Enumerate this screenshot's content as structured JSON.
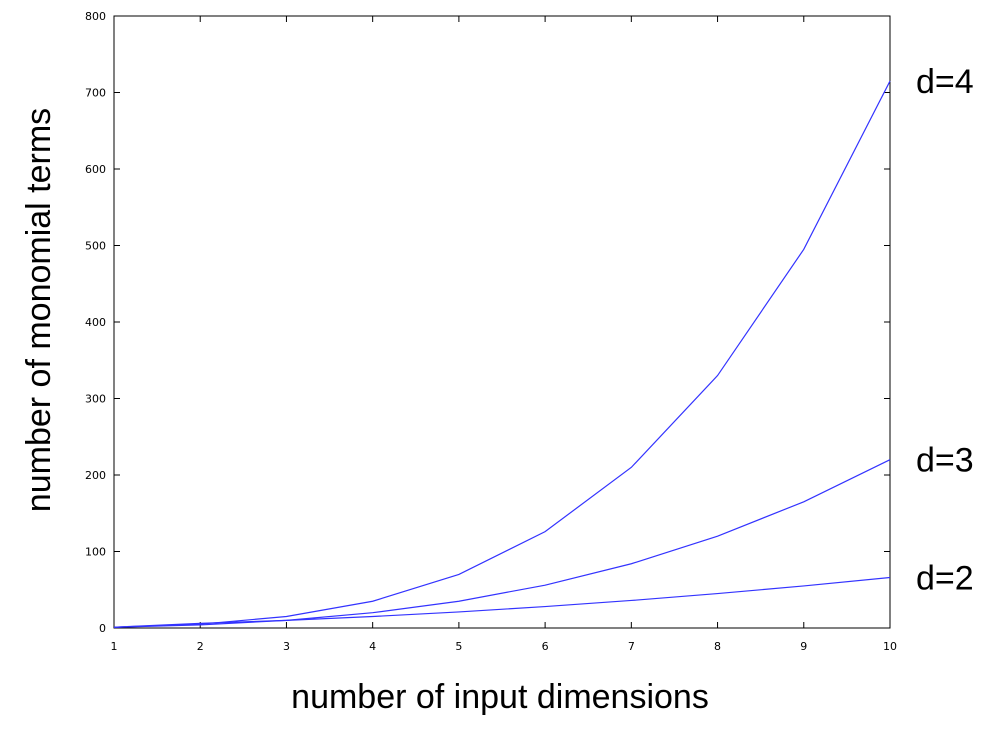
{
  "chart_data": {
    "type": "line",
    "title": "",
    "xlabel": "number of input dimensions",
    "ylabel": "number of monomial terms",
    "xlim": [
      1,
      10
    ],
    "ylim": [
      0,
      800
    ],
    "xticks": [
      1,
      2,
      3,
      4,
      5,
      6,
      7,
      8,
      9,
      10
    ],
    "yticks": [
      0,
      100,
      200,
      300,
      400,
      500,
      600,
      700,
      800
    ],
    "grid": false,
    "line_color": "#3333ff",
    "x": [
      1,
      2,
      3,
      4,
      5,
      6,
      7,
      8,
      9,
      10
    ],
    "series": [
      {
        "name": "d=2",
        "values": [
          1,
          6,
          10,
          15,
          21,
          28,
          36,
          45,
          55,
          66
        ]
      },
      {
        "name": "d=3",
        "values": [
          1,
          4,
          10,
          20,
          35,
          56,
          84,
          120,
          165,
          220
        ]
      },
      {
        "name": "d=4",
        "values": [
          1,
          5,
          15,
          35,
          70,
          126,
          210,
          330,
          495,
          715
        ]
      }
    ]
  }
}
